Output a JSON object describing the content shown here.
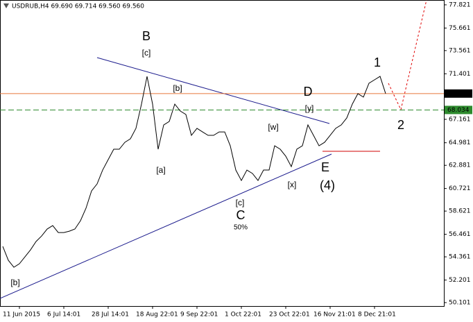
{
  "chart_data": {
    "type": "line",
    "title": "USDRUB,H4  69.690 69.714 69.560 69.560",
    "categories": [
      null,
      null,
      null,
      "11 Jun 2015",
      null,
      null,
      null,
      null,
      null,
      null,
      null,
      "6 Jul 14:01",
      null,
      null,
      null,
      null,
      null,
      null,
      null,
      "28 Jul 14:01",
      null,
      null,
      null,
      null,
      null,
      null,
      null,
      "18 Aug 22:01",
      null,
      null,
      null,
      null,
      null,
      null,
      null,
      "9 Sep 22:01",
      null,
      null,
      null,
      null,
      null,
      null,
      null,
      "1 Oct 22:01",
      null,
      null,
      null,
      null,
      null,
      null,
      null,
      "23 Oct 22:01",
      null,
      null,
      null,
      null,
      null,
      null,
      null,
      "16 Nov 21:01",
      null,
      null,
      null,
      null,
      null,
      null,
      null,
      "8 Dec 21:01",
      null,
      null
    ],
    "series": [
      {
        "name": "USDRUB",
        "color": "#000000",
        "values": [
          55.33,
          54.04,
          53.39,
          53.72,
          54.36,
          55.01,
          55.79,
          56.3,
          56.95,
          57.27,
          56.62,
          56.62,
          56.75,
          56.95,
          57.72,
          58.89,
          60.5,
          61.15,
          62.44,
          63.41,
          64.38,
          64.38,
          65.02,
          65.35,
          66.32,
          68.58,
          71.16,
          68.58,
          64.38,
          66.64,
          66.96,
          68.58,
          67.93,
          67.61,
          65.67,
          66.32,
          65.99,
          65.67,
          65.67,
          65.99,
          65.99,
          64.7,
          62.44,
          61.47,
          62.44,
          62.12,
          61.47,
          62.44,
          62.44,
          64.7,
          64.38,
          63.73,
          62.76,
          64.38,
          64.7,
          66.64,
          65.67,
          64.7,
          65.02,
          65.67,
          66.32,
          66.64,
          67.29,
          68.58,
          69.55,
          69.23,
          70.52,
          70.84,
          71.16,
          69.56
        ]
      }
    ],
    "ylim": [
      49.78,
      78.27
    ],
    "yticks": [
      50.101,
      52.201,
      54.361,
      56.461,
      58.621,
      60.721,
      62.881,
      64.981,
      67.161,
      71.401,
      73.561,
      75.661,
      77.821
    ],
    "levels": [
      {
        "value": 69.56,
        "label": "69.560",
        "color": "#e8763a",
        "style": "solid"
      },
      {
        "value": 68.034,
        "label": "68.034",
        "color": "#2e8b2e",
        "style": "dashed"
      }
    ],
    "annotations": [
      {
        "text": "B",
        "color": "#8b0000"
      },
      {
        "text": "[c]",
        "color": "#2e8b2e"
      },
      {
        "text": "[b]",
        "color": "#2e8b2e"
      },
      {
        "text": "[a]",
        "color": "#2e8b2e"
      },
      {
        "text": "C",
        "color": "#8b0000"
      },
      {
        "text": "[c]",
        "color": "#2e8b2e"
      },
      {
        "text": "50%",
        "color": "#1a1a8c"
      },
      {
        "text": "[w]",
        "color": "#2e8b2e"
      },
      {
        "text": "[x]",
        "color": "#2e8b2e"
      },
      {
        "text": "D",
        "color": "#8b0000"
      },
      {
        "text": "[y]",
        "color": "#2e8b2e"
      },
      {
        "text": "E",
        "color": "#8b0000"
      },
      {
        "text": "(4)",
        "color": "#1a1a8c"
      },
      {
        "text": "1",
        "color": "#8b0000"
      },
      {
        "text": "2",
        "color": "#8b0000"
      },
      {
        "text": "[b]",
        "color": "#2e8b2e"
      }
    ]
  }
}
